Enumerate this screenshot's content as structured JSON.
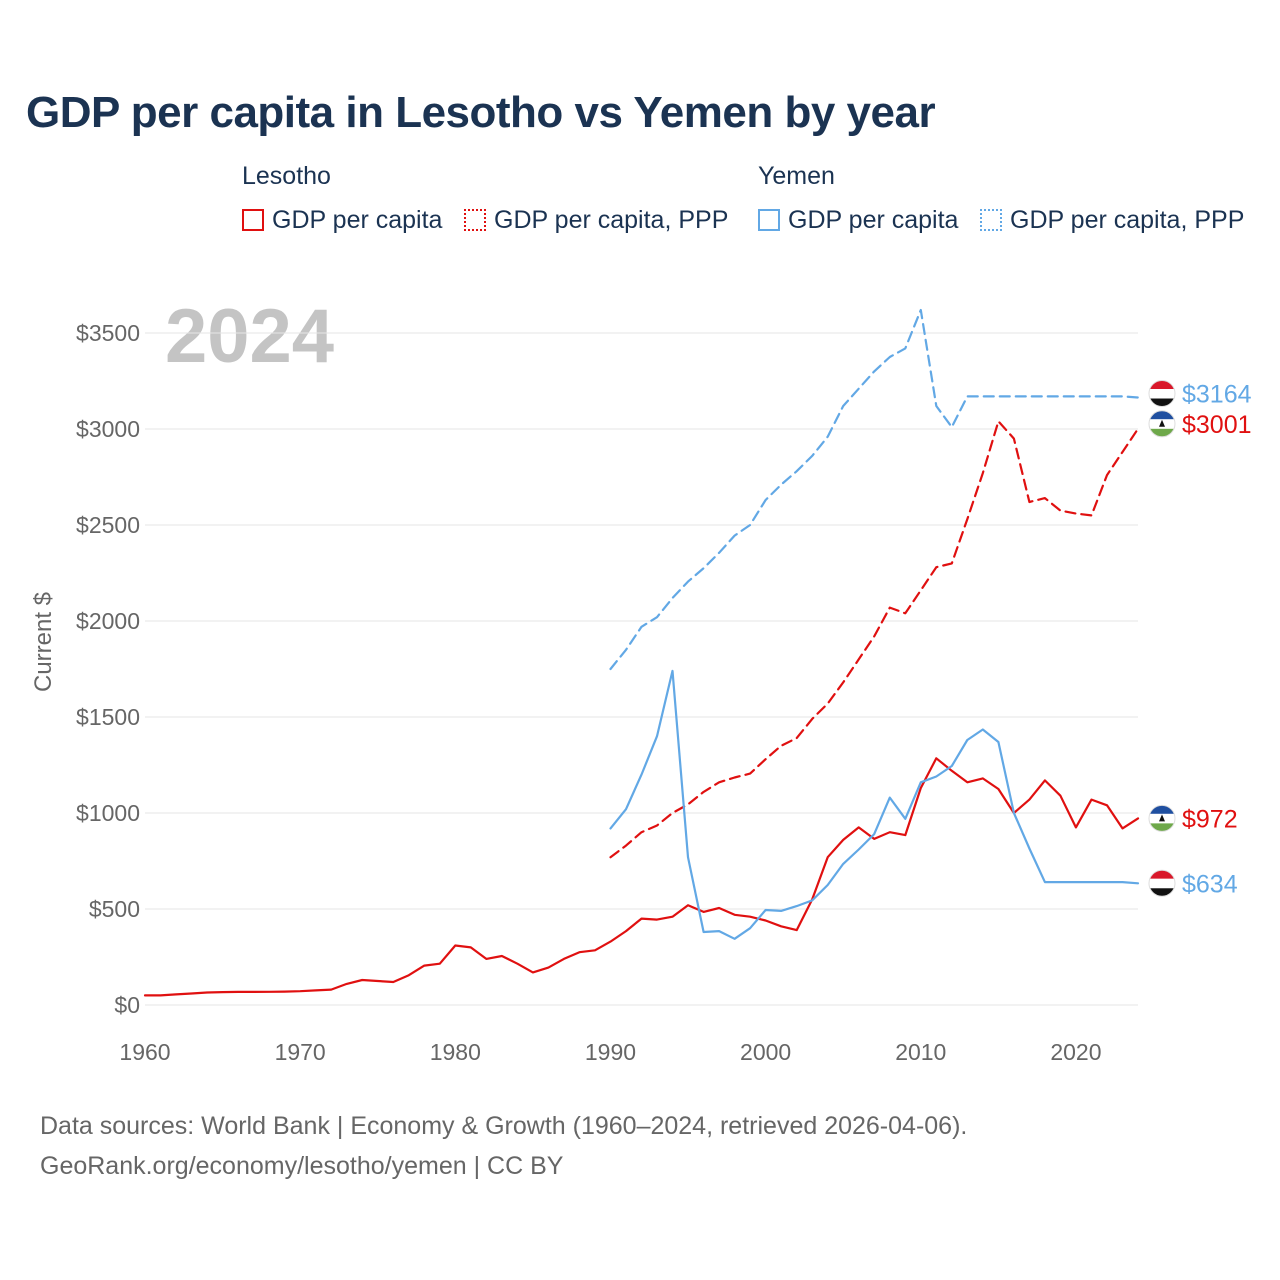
{
  "title": "GDP per capita in Lesotho vs Yemen by year",
  "legend": {
    "groups": [
      {
        "name": "Lesotho",
        "items": [
          "GDP per capita",
          "GDP per capita, PPP"
        ]
      },
      {
        "name": "Yemen",
        "items": [
          "GDP per capita",
          "GDP per capita, PPP"
        ]
      }
    ]
  },
  "source": {
    "line1": "Data sources: World Bank | Economy & Growth (1960–2024, retrieved 2026-04-06).",
    "line2": "GeoRank.org/economy/lesotho/yemen | CC BY"
  },
  "colors": {
    "lesotho": "#e01010",
    "yemen": "#62a8e5",
    "year": "#c4c4c4",
    "axis": "#666666",
    "grid": "#e6e6e6"
  },
  "chart_data": {
    "type": "line",
    "year_label": "2024",
    "ylabel": "Current $",
    "xlim": [
      1960,
      2024
    ],
    "ylim": [
      0,
      3500
    ],
    "x_ticks": [
      1960,
      1970,
      1980,
      1990,
      2000,
      2010,
      2020
    ],
    "y_ticks": [
      0,
      500,
      1000,
      1500,
      2000,
      2500,
      3000,
      3500
    ],
    "y_tick_labels": [
      "$0",
      "$500",
      "$1000",
      "$1500",
      "$2000",
      "$2500",
      "$3000",
      "$3500"
    ],
    "series": [
      {
        "name": "Lesotho GDP per capita",
        "country": "lesotho",
        "dashed": false,
        "end_label": "$972",
        "x": [
          1960,
          1961,
          1962,
          1963,
          1964,
          1965,
          1966,
          1967,
          1968,
          1969,
          1970,
          1971,
          1972,
          1973,
          1974,
          1975,
          1976,
          1977,
          1978,
          1979,
          1980,
          1981,
          1982,
          1983,
          1984,
          1985,
          1986,
          1987,
          1988,
          1989,
          1990,
          1991,
          1992,
          1993,
          1994,
          1995,
          1996,
          1997,
          1998,
          1999,
          2000,
          2001,
          2002,
          2003,
          2004,
          2005,
          2006,
          2007,
          2008,
          2009,
          2010,
          2011,
          2012,
          2013,
          2014,
          2015,
          2016,
          2017,
          2018,
          2019,
          2020,
          2021,
          2022,
          2023,
          2024
        ],
        "y": [
          50,
          50,
          55,
          60,
          65,
          67,
          68,
          68,
          69,
          70,
          72,
          76,
          80,
          110,
          130,
          125,
          120,
          155,
          205,
          215,
          310,
          300,
          240,
          255,
          215,
          170,
          195,
          240,
          275,
          285,
          330,
          385,
          450,
          445,
          460,
          520,
          485,
          505,
          470,
          460,
          440,
          410,
          390,
          550,
          770,
          860,
          925,
          865,
          900,
          885,
          1130,
          1285,
          1220,
          1160,
          1180,
          1125,
          1000,
          1070,
          1170,
          1090,
          925,
          1070,
          1040,
          920,
          972
        ]
      },
      {
        "name": "Lesotho GDP per capita, PPP",
        "country": "lesotho",
        "dashed": true,
        "end_label": "$3001",
        "x": [
          1990,
          1991,
          1992,
          1993,
          1994,
          1995,
          1996,
          1997,
          1998,
          1999,
          2000,
          2001,
          2002,
          2003,
          2004,
          2005,
          2006,
          2007,
          2008,
          2009,
          2010,
          2011,
          2012,
          2013,
          2014,
          2015,
          2016,
          2017,
          2018,
          2019,
          2020,
          2021,
          2022,
          2023,
          2024
        ],
        "y": [
          770,
          830,
          900,
          935,
          1000,
          1045,
          1110,
          1160,
          1185,
          1205,
          1280,
          1350,
          1390,
          1490,
          1570,
          1680,
          1800,
          1920,
          2070,
          2040,
          2160,
          2280,
          2300,
          2530,
          2770,
          3040,
          2950,
          2620,
          2640,
          2575,
          2560,
          2550,
          2760,
          2880,
          3001
        ]
      },
      {
        "name": "Yemen GDP per capita",
        "country": "yemen",
        "dashed": false,
        "end_label": "$634",
        "x": [
          1990,
          1991,
          1992,
          1993,
          1994,
          1995,
          1996,
          1997,
          1998,
          1999,
          2000,
          2001,
          2002,
          2003,
          2004,
          2005,
          2006,
          2007,
          2008,
          2009,
          2010,
          2011,
          2012,
          2013,
          2014,
          2015,
          2016,
          2017,
          2018,
          2019,
          2020,
          2021,
          2022,
          2023,
          2024
        ],
        "y": [
          920,
          1020,
          1200,
          1400,
          1740,
          770,
          380,
          385,
          345,
          400,
          495,
          490,
          515,
          545,
          625,
          735,
          810,
          890,
          1080,
          970,
          1160,
          1190,
          1245,
          1380,
          1435,
          1370,
          1000,
          815,
          640,
          640,
          640,
          640,
          640,
          640,
          634
        ]
      },
      {
        "name": "Yemen GDP per capita, PPP",
        "country": "yemen",
        "dashed": true,
        "end_label": "$3164",
        "x": [
          1990,
          1991,
          1992,
          1993,
          1994,
          1995,
          1996,
          1997,
          1998,
          1999,
          2000,
          2001,
          2002,
          2003,
          2004,
          2005,
          2006,
          2007,
          2008,
          2009,
          2010,
          2011,
          2012,
          2013,
          2014,
          2015,
          2016,
          2017,
          2018,
          2019,
          2020,
          2021,
          2022,
          2023,
          2024
        ],
        "y": [
          1750,
          1850,
          1970,
          2020,
          2120,
          2205,
          2275,
          2355,
          2445,
          2500,
          2630,
          2710,
          2780,
          2860,
          2960,
          3120,
          3210,
          3300,
          3375,
          3420,
          3620,
          3120,
          3010,
          3170,
          3170,
          3170,
          3170,
          3170,
          3170,
          3170,
          3170,
          3170,
          3170,
          3170,
          3164
        ]
      }
    ]
  }
}
